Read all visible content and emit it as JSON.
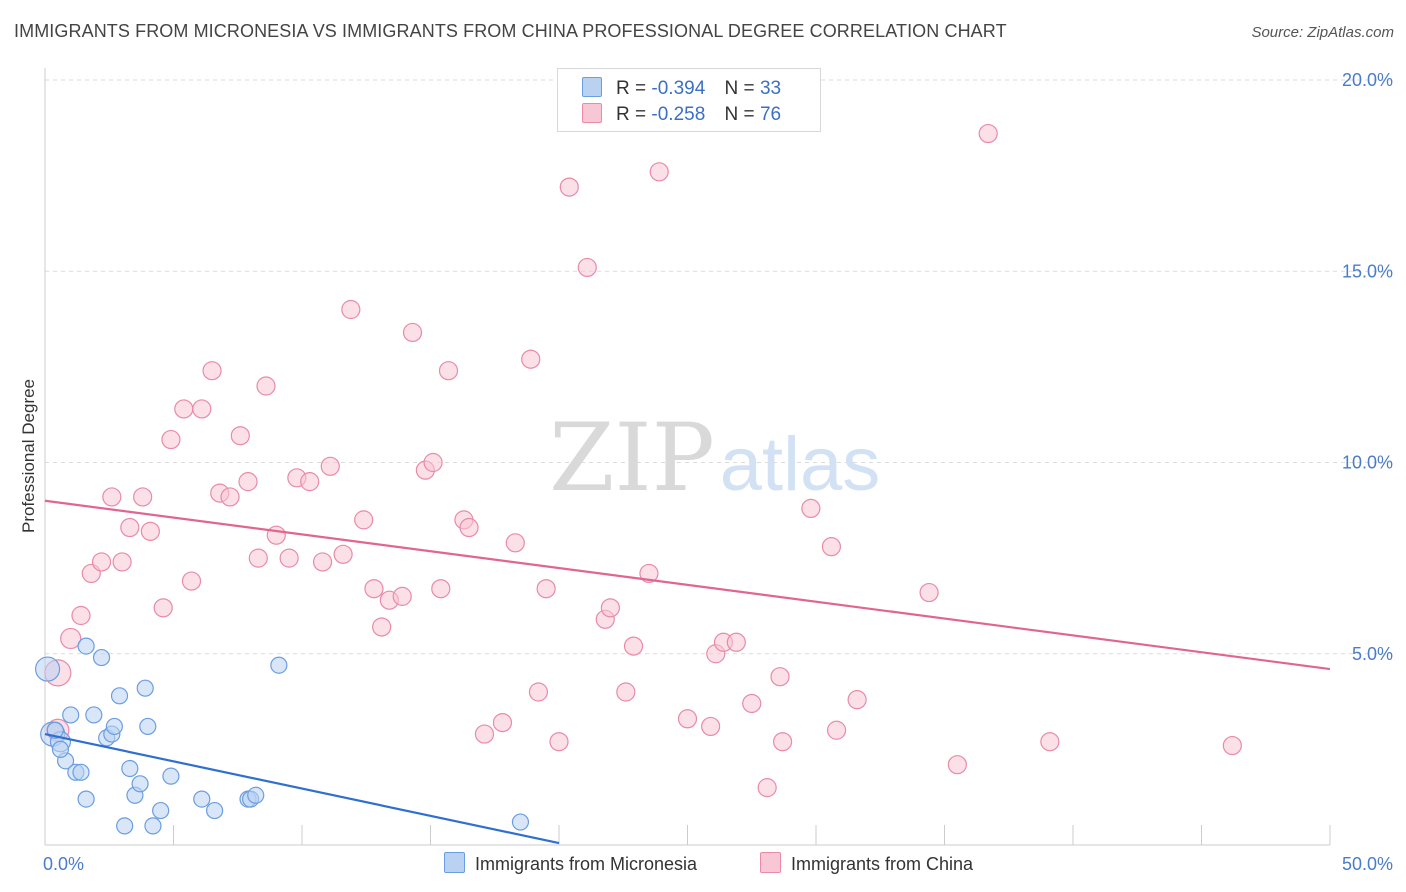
{
  "title": "IMMIGRANTS FROM MICRONESIA VS IMMIGRANTS FROM CHINA PROFESSIONAL DEGREE CORRELATION CHART",
  "source": "Source: ZipAtlas.com",
  "watermark": {
    "zip": "ZIP",
    "atlas": "atlas"
  },
  "legend": {
    "r_label": "R =",
    "n_label": "N =",
    "rows": [
      {
        "r": "-0.394",
        "n": "33"
      },
      {
        "r": "-0.258",
        "n": "76"
      }
    ]
  },
  "colors": {
    "micronesia_fill": "#b9d2f2",
    "micronesia_stroke": "#6a9ee0",
    "micronesia_line": "#2f6fd0",
    "china_fill": "#f7c7d5",
    "china_stroke": "#e98aa8",
    "china_line": "#e06590",
    "tick": "#4a7cc9",
    "grid": "#dcdcdc"
  },
  "chart_data": {
    "type": "scatter",
    "title": "IMMIGRANTS FROM MICRONESIA VS IMMIGRANTS FROM CHINA PROFESSIONAL DEGREE CORRELATION CHART",
    "xlabel": "",
    "ylabel": "Professional Degree",
    "xlim": [
      0,
      50
    ],
    "ylim": [
      0,
      20
    ],
    "x_ticks": [
      "0.0%",
      "50.0%"
    ],
    "y_ticks": [
      {
        "value": 5,
        "label": "5.0%"
      },
      {
        "value": 10,
        "label": "10.0%"
      },
      {
        "value": 15,
        "label": "15.0%"
      },
      {
        "value": 20,
        "label": "20.0%"
      }
    ],
    "grid": true,
    "legend_position": "bottom",
    "series": [
      {
        "name": "Immigrants from Micronesia",
        "trend": {
          "x": [
            0,
            20
          ],
          "y": [
            2.9,
            0.05
          ]
        },
        "points": [
          {
            "x": 0.1,
            "y": 4.6,
            "s": 12
          },
          {
            "x": 0.3,
            "y": 2.9,
            "s": 12
          },
          {
            "x": 0.6,
            "y": 2.7,
            "s": 10
          },
          {
            "x": 0.8,
            "y": 2.2,
            "s": 8
          },
          {
            "x": 1.0,
            "y": 3.4,
            "s": 8
          },
          {
            "x": 1.2,
            "y": 1.9,
            "s": 8
          },
          {
            "x": 1.4,
            "y": 1.9,
            "s": 8
          },
          {
            "x": 1.6,
            "y": 5.2,
            "s": 8
          },
          {
            "x": 1.6,
            "y": 1.2,
            "s": 8
          },
          {
            "x": 1.9,
            "y": 3.4,
            "s": 8
          },
          {
            "x": 2.2,
            "y": 4.9,
            "s": 8
          },
          {
            "x": 2.4,
            "y": 2.8,
            "s": 8
          },
          {
            "x": 2.6,
            "y": 2.9,
            "s": 8
          },
          {
            "x": 2.7,
            "y": 3.1,
            "s": 8
          },
          {
            "x": 2.9,
            "y": 3.9,
            "s": 8
          },
          {
            "x": 3.1,
            "y": 0.5,
            "s": 8
          },
          {
            "x": 3.3,
            "y": 2.0,
            "s": 8
          },
          {
            "x": 3.5,
            "y": 1.3,
            "s": 8
          },
          {
            "x": 3.7,
            "y": 1.6,
            "s": 8
          },
          {
            "x": 3.9,
            "y": 4.1,
            "s": 8
          },
          {
            "x": 4.0,
            "y": 3.1,
            "s": 8
          },
          {
            "x": 4.2,
            "y": 0.5,
            "s": 8
          },
          {
            "x": 4.5,
            "y": 0.9,
            "s": 8
          },
          {
            "x": 4.9,
            "y": 1.8,
            "s": 8
          },
          {
            "x": 6.1,
            "y": 1.2,
            "s": 8
          },
          {
            "x": 6.6,
            "y": 0.9,
            "s": 8
          },
          {
            "x": 7.9,
            "y": 1.2,
            "s": 8
          },
          {
            "x": 8.0,
            "y": 1.2,
            "s": 8
          },
          {
            "x": 8.2,
            "y": 1.3,
            "s": 8
          },
          {
            "x": 9.1,
            "y": 4.7,
            "s": 8
          },
          {
            "x": 18.5,
            "y": 0.6,
            "s": 8
          },
          {
            "x": 0.4,
            "y": 3.0,
            "s": 8
          },
          {
            "x": 0.6,
            "y": 2.5,
            "s": 8
          }
        ]
      },
      {
        "name": "Immigrants from China",
        "trend": {
          "x": [
            0,
            50
          ],
          "y": [
            9.0,
            4.6
          ]
        },
        "points": [
          {
            "x": 0.5,
            "y": 4.5,
            "s": 13
          },
          {
            "x": 0.5,
            "y": 3.0,
            "s": 11
          },
          {
            "x": 1.0,
            "y": 5.4,
            "s": 10
          },
          {
            "x": 1.4,
            "y": 6.0,
            "s": 9
          },
          {
            "x": 1.8,
            "y": 7.1,
            "s": 9
          },
          {
            "x": 2.2,
            "y": 7.4,
            "s": 9
          },
          {
            "x": 2.6,
            "y": 9.1,
            "s": 9
          },
          {
            "x": 3.0,
            "y": 7.4,
            "s": 9
          },
          {
            "x": 3.3,
            "y": 8.3,
            "s": 9
          },
          {
            "x": 3.8,
            "y": 9.1,
            "s": 9
          },
          {
            "x": 4.1,
            "y": 8.2,
            "s": 9
          },
          {
            "x": 4.6,
            "y": 6.2,
            "s": 9
          },
          {
            "x": 4.9,
            "y": 10.6,
            "s": 9
          },
          {
            "x": 5.4,
            "y": 11.4,
            "s": 9
          },
          {
            "x": 5.7,
            "y": 6.9,
            "s": 9
          },
          {
            "x": 6.1,
            "y": 11.4,
            "s": 9
          },
          {
            "x": 6.5,
            "y": 12.4,
            "s": 9
          },
          {
            "x": 6.8,
            "y": 9.2,
            "s": 9
          },
          {
            "x": 7.2,
            "y": 9.1,
            "s": 9
          },
          {
            "x": 7.6,
            "y": 10.7,
            "s": 9
          },
          {
            "x": 7.9,
            "y": 9.5,
            "s": 9
          },
          {
            "x": 8.3,
            "y": 7.5,
            "s": 9
          },
          {
            "x": 8.6,
            "y": 12.0,
            "s": 9
          },
          {
            "x": 9.0,
            "y": 8.1,
            "s": 9
          },
          {
            "x": 9.5,
            "y": 7.5,
            "s": 9
          },
          {
            "x": 9.8,
            "y": 9.6,
            "s": 9
          },
          {
            "x": 10.3,
            "y": 9.5,
            "s": 9
          },
          {
            "x": 10.8,
            "y": 7.4,
            "s": 9
          },
          {
            "x": 11.1,
            "y": 9.9,
            "s": 9
          },
          {
            "x": 11.6,
            "y": 7.6,
            "s": 9
          },
          {
            "x": 11.9,
            "y": 14.0,
            "s": 9
          },
          {
            "x": 12.4,
            "y": 8.5,
            "s": 9
          },
          {
            "x": 12.8,
            "y": 6.7,
            "s": 9
          },
          {
            "x": 13.1,
            "y": 5.7,
            "s": 9
          },
          {
            "x": 13.4,
            "y": 6.4,
            "s": 9
          },
          {
            "x": 13.9,
            "y": 6.5,
            "s": 9
          },
          {
            "x": 14.3,
            "y": 13.4,
            "s": 9
          },
          {
            "x": 14.8,
            "y": 9.8,
            "s": 9
          },
          {
            "x": 15.1,
            "y": 10.0,
            "s": 9
          },
          {
            "x": 15.4,
            "y": 6.7,
            "s": 9
          },
          {
            "x": 15.7,
            "y": 12.4,
            "s": 9
          },
          {
            "x": 16.3,
            "y": 8.5,
            "s": 9
          },
          {
            "x": 16.5,
            "y": 8.3,
            "s": 9
          },
          {
            "x": 17.1,
            "y": 2.9,
            "s": 9
          },
          {
            "x": 17.8,
            "y": 3.2,
            "s": 9
          },
          {
            "x": 18.3,
            "y": 7.9,
            "s": 9
          },
          {
            "x": 18.9,
            "y": 12.7,
            "s": 9
          },
          {
            "x": 19.2,
            "y": 4.0,
            "s": 9
          },
          {
            "x": 19.5,
            "y": 6.7,
            "s": 9
          },
          {
            "x": 20.0,
            "y": 2.7,
            "s": 9
          },
          {
            "x": 20.4,
            "y": 17.2,
            "s": 9
          },
          {
            "x": 21.1,
            "y": 15.1,
            "s": 9
          },
          {
            "x": 21.8,
            "y": 5.9,
            "s": 9
          },
          {
            "x": 22.0,
            "y": 6.2,
            "s": 9
          },
          {
            "x": 22.6,
            "y": 4.0,
            "s": 9
          },
          {
            "x": 22.9,
            "y": 5.2,
            "s": 9
          },
          {
            "x": 23.5,
            "y": 7.1,
            "s": 9
          },
          {
            "x": 23.9,
            "y": 17.6,
            "s": 9
          },
          {
            "x": 25.0,
            "y": 3.3,
            "s": 9
          },
          {
            "x": 25.9,
            "y": 3.1,
            "s": 9
          },
          {
            "x": 26.1,
            "y": 5.0,
            "s": 9
          },
          {
            "x": 26.4,
            "y": 5.3,
            "s": 9
          },
          {
            "x": 26.9,
            "y": 5.3,
            "s": 9
          },
          {
            "x": 27.5,
            "y": 3.7,
            "s": 9
          },
          {
            "x": 28.1,
            "y": 1.5,
            "s": 9
          },
          {
            "x": 28.6,
            "y": 4.4,
            "s": 9
          },
          {
            "x": 28.7,
            "y": 2.7,
            "s": 9
          },
          {
            "x": 29.8,
            "y": 8.8,
            "s": 9
          },
          {
            "x": 30.6,
            "y": 7.8,
            "s": 9
          },
          {
            "x": 30.8,
            "y": 3.0,
            "s": 9
          },
          {
            "x": 31.6,
            "y": 3.8,
            "s": 9
          },
          {
            "x": 34.4,
            "y": 6.6,
            "s": 9
          },
          {
            "x": 35.5,
            "y": 2.1,
            "s": 9
          },
          {
            "x": 36.7,
            "y": 18.6,
            "s": 9
          },
          {
            "x": 39.1,
            "y": 2.7,
            "s": 9
          },
          {
            "x": 46.2,
            "y": 2.6,
            "s": 9
          }
        ]
      }
    ]
  }
}
